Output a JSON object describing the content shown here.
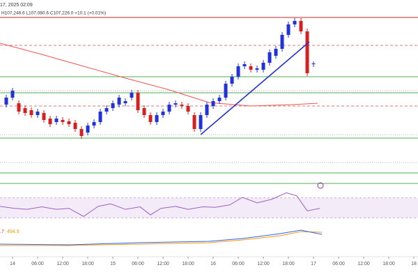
{
  "chart_data": {
    "type": "candlestick",
    "header_date": "17, 2025 02:09",
    "ohlc": "H107,248.6 L107,080.6 C107,226.0 +10.1 (+0.01%)",
    "xlim": [
      -3,
      97
    ],
    "xticks": [
      {
        "value": 0,
        "label": "14"
      },
      {
        "value": 6,
        "label": "06:00"
      },
      {
        "value": 12,
        "label": "12:00"
      },
      {
        "value": 18,
        "label": "18:00"
      },
      {
        "value": 24,
        "label": "15"
      },
      {
        "value": 30,
        "label": "06:00"
      },
      {
        "value": 36,
        "label": "12:00"
      },
      {
        "value": 42,
        "label": "18:00"
      },
      {
        "value": 48,
        "label": "16"
      },
      {
        "value": 54,
        "label": "06:00"
      },
      {
        "value": 60,
        "label": "12:00"
      },
      {
        "value": 66,
        "label": "18:00"
      },
      {
        "value": 72,
        "label": "17"
      },
      {
        "value": 78,
        "label": "06:00"
      },
      {
        "value": 84,
        "label": "12:00"
      },
      {
        "value": 90,
        "label": "18:00"
      },
      {
        "value": 96,
        "label": "18"
      }
    ],
    "ylim": [
      -55,
      215
    ],
    "up_color": "#2132d6",
    "down_color": "#d32020",
    "candles": {
      "x": [
        -1.5,
        0,
        1.5,
        3,
        4.5,
        6,
        7.5,
        9,
        10.5,
        12,
        13.5,
        15,
        16.5,
        18,
        19.5,
        21,
        22.5,
        24,
        25.5,
        27,
        28.5,
        30,
        31.5,
        33,
        34.5,
        36,
        37.5,
        39,
        40.5,
        42,
        43.5,
        45,
        46.5,
        48,
        49.5,
        51,
        52.5,
        54,
        55.5,
        57,
        58.5,
        60,
        61.5,
        63,
        64.5,
        66,
        67.5,
        69,
        70.5,
        72
      ],
      "open": [
        65,
        75,
        67,
        60,
        57,
        50,
        53,
        45,
        40,
        43,
        41,
        39,
        30,
        25,
        35,
        40,
        55,
        60,
        65,
        67,
        75,
        82,
        60,
        50,
        40,
        50,
        55,
        65,
        65,
        63,
        50,
        30,
        50,
        63,
        70,
        75,
        95,
        105,
        120,
        120,
        115,
        115,
        125,
        135,
        145,
        165,
        180,
        185,
        170,
        123
      ],
      "high": [
        79,
        89,
        71,
        64,
        61,
        59,
        57,
        49,
        49,
        47,
        45,
        43,
        34,
        39,
        44,
        59,
        64,
        71,
        79,
        74,
        86,
        86,
        64,
        54,
        54,
        59,
        69,
        71,
        69,
        67,
        54,
        54,
        69,
        74,
        79,
        99,
        109,
        124,
        127,
        124,
        121,
        129,
        144,
        149,
        169,
        184,
        189,
        189,
        174,
        127
      ],
      "low": [
        61,
        71,
        51,
        49,
        46,
        46,
        39,
        33,
        36,
        36,
        33,
        26,
        16,
        21,
        31,
        36,
        51,
        56,
        61,
        63,
        71,
        53,
        46,
        36,
        36,
        46,
        51,
        61,
        59,
        51,
        26,
        26,
        46,
        59,
        66,
        71,
        91,
        101,
        116,
        111,
        111,
        111,
        121,
        131,
        141,
        161,
        176,
        166,
        106,
        119
      ],
      "close": [
        75,
        85,
        55,
        53,
        50,
        55,
        43,
        37,
        45,
        40,
        37,
        30,
        20,
        35,
        40,
        55,
        60,
        67,
        75,
        70,
        82,
        57,
        50,
        40,
        50,
        55,
        65,
        67,
        63,
        55,
        30,
        50,
        65,
        70,
        75,
        95,
        105,
        120,
        123,
        115,
        117,
        125,
        140,
        145,
        165,
        180,
        185,
        170,
        110,
        124
      ]
    },
    "ma": {
      "color": "#ef5350",
      "x": [
        -3,
        7,
        17,
        27,
        37,
        47,
        57,
        67,
        73
      ],
      "values": [
        153,
        137,
        120,
        103,
        87,
        68,
        63,
        65,
        67
      ]
    },
    "trendline": {
      "color": "#2030d0",
      "x": [
        45,
        71
      ],
      "values": [
        22,
        155
      ]
    },
    "levels": [
      {
        "value": 190,
        "color": "#c62828",
        "style": "solid"
      },
      {
        "value": 150,
        "color": "#e57373",
        "style": "dashed"
      },
      {
        "value": 105,
        "color": "#4caf50",
        "style": "solid"
      },
      {
        "value": 85,
        "color": "#b0b0b0",
        "style": "dotted"
      },
      {
        "value": 82,
        "color": "#4caf50",
        "style": "solid"
      },
      {
        "value": 63,
        "color": "#e57373",
        "style": "dashed"
      },
      {
        "value": 22,
        "color": "#b0b0b0",
        "style": "dotted"
      },
      {
        "value": 17,
        "color": "#4caf50",
        "style": "solid"
      },
      {
        "value": -18,
        "color": "#b0b0b0",
        "style": "dotted"
      },
      {
        "value": -33,
        "color": "#4caf50",
        "style": "solid"
      },
      {
        "value": -48,
        "color": "#4caf50",
        "style": "solid"
      }
    ],
    "rsi": {
      "color": "#9c5fc4",
      "ylim": [
        0,
        100
      ],
      "band": [
        30,
        70
      ],
      "x": [
        -3,
        0.5,
        3.5,
        7,
        10.5,
        13.5,
        17,
        20.5,
        23.5,
        27,
        30.5,
        33,
        35.5,
        39,
        42,
        45.5,
        48.5,
        52,
        55,
        58.5,
        62,
        65.5,
        68,
        70.5,
        73.5
      ],
      "values": [
        53,
        49,
        47,
        52,
        47,
        49,
        33,
        53,
        58,
        47,
        52,
        36,
        49,
        53,
        47,
        52,
        51,
        56,
        71,
        60,
        67,
        80,
        74,
        44,
        49
      ]
    },
    "macd": {
      "ylim": [
        -1000,
        1000
      ],
      "label_macd": ".7",
      "label_signal": "494.9",
      "macd_color": "#2962ff",
      "signal_color": "#ff9800",
      "x": [
        -3,
        13.5,
        30,
        47,
        55,
        64,
        69,
        74
      ],
      "macd_values": [
        -500,
        -550,
        -400,
        -300,
        -100,
        250,
        500,
        200
      ],
      "signal_values": [
        -600,
        -600,
        -500,
        -400,
        -200,
        100,
        400,
        350
      ]
    }
  }
}
